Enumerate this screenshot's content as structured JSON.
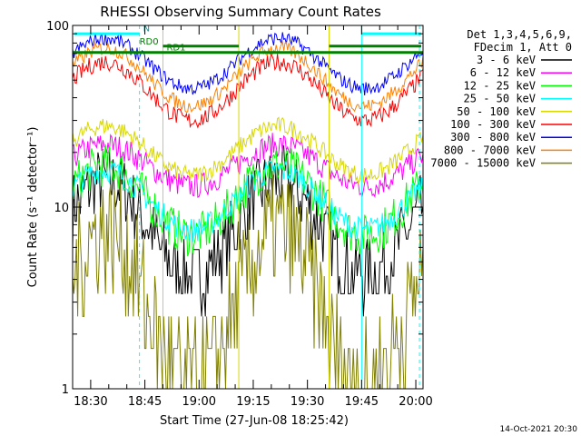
{
  "chart_data": {
    "type": "line",
    "title": "RHESSI Observing Summary Count Rates",
    "xlabel": "Start Time (27-Jun-08 18:25:42)",
    "ylabel": "Count Rate (s⁻¹ detector⁻¹)",
    "y_scale": "log",
    "ylim": [
      1,
      100
    ],
    "xlim_minutes_after_1825": [
      0,
      97
    ],
    "x_ticks": [
      {
        "label": "18:30",
        "minutes": 5
      },
      {
        "label": "18:45",
        "minutes": 20
      },
      {
        "label": "19:00",
        "minutes": 35
      },
      {
        "label": "19:15",
        "minutes": 50
      },
      {
        "label": "19:30",
        "minutes": 65
      },
      {
        "label": "19:45",
        "minutes": 80
      },
      {
        "label": "20:00",
        "minutes": 95
      }
    ],
    "y_ticks": [
      {
        "label": "1",
        "value": 1
      },
      {
        "label": "10",
        "value": 10
      },
      {
        "label": "100",
        "value": 100
      }
    ],
    "legend_header": [
      "Det 1,3,4,5,6,9,",
      "FDecim 1, Att 0"
    ],
    "series": [
      {
        "name": "3 - 6 keV",
        "color": "#000000"
      },
      {
        "name": "6 - 12 keV",
        "color": "#ff00ff"
      },
      {
        "name": "12 - 25 keV",
        "color": "#00ff00"
      },
      {
        "name": "25 - 50 keV",
        "color": "#00ffff"
      },
      {
        "name": "50 - 100 keV",
        "color": "#d8d800"
      },
      {
        "name": "100 - 300 keV",
        "color": "#ff0000"
      },
      {
        "name": "300 - 800 keV",
        "color": "#0000ff"
      },
      {
        "name": "800 - 7000 keV",
        "color": "#ff8000"
      },
      {
        "name": "7000 - 15000 keV",
        "color": "#808000"
      }
    ],
    "flag_labels": [
      "N",
      "RD0",
      "RD1"
    ],
    "footer_date": "14-Oct-2021 20:30"
  }
}
